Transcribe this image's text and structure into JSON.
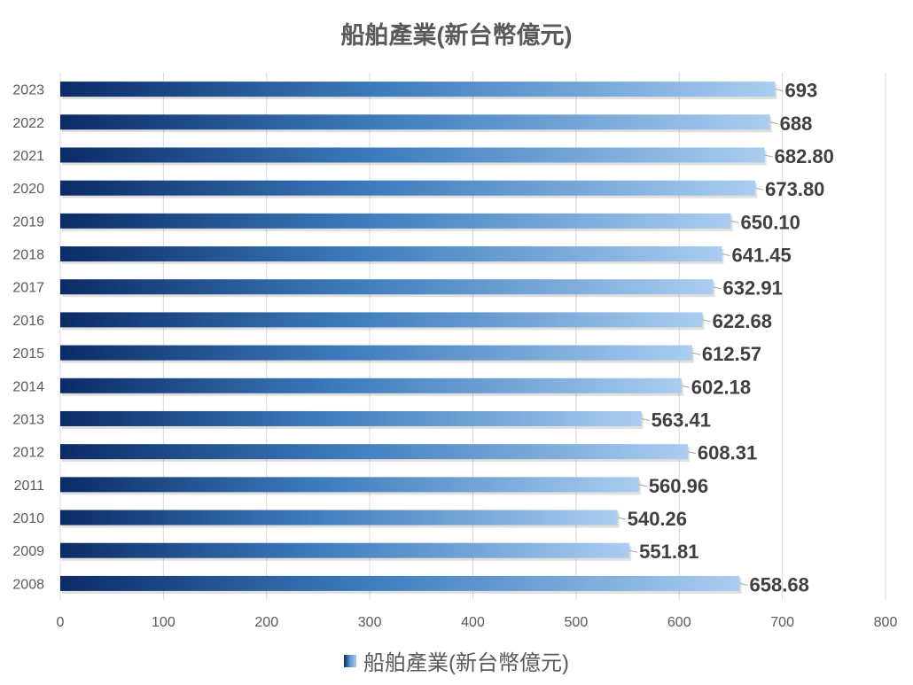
{
  "chart_data": {
    "type": "bar",
    "orientation": "horizontal",
    "title": "船舶產業(新台幣億元)",
    "categories": [
      "2023",
      "2022",
      "2021",
      "2020",
      "2019",
      "2018",
      "2017",
      "2016",
      "2015",
      "2014",
      "2013",
      "2012",
      "2011",
      "2010",
      "2009",
      "2008"
    ],
    "series": [
      {
        "name": "船舶產業(新台幣億元)",
        "values": [
          693,
          688,
          682.8,
          673.8,
          650.1,
          641.45,
          632.91,
          622.68,
          612.57,
          602.18,
          563.41,
          608.31,
          560.96,
          540.26,
          551.81,
          658.68
        ]
      }
    ],
    "data_labels": [
      "693",
      "688",
      "682.80",
      "673.80",
      "650.10",
      "641.45",
      "632.91",
      "622.68",
      "612.57",
      "602.18",
      "563.41",
      "608.31",
      "560.96",
      "540.26",
      "551.81",
      "658.68"
    ],
    "xlim": [
      0,
      800
    ],
    "x_ticks": [
      "0",
      "100",
      "200",
      "300",
      "400",
      "500",
      "600",
      "700",
      "800"
    ],
    "grid": true,
    "legend_position": "bottom",
    "colors": {
      "bar_dark": "#0b2b66",
      "bar_mid": "#3f7fc0",
      "bar_light": "#aacdf0",
      "grid": "#d9d9d9",
      "text": "#595959",
      "label": "#404040"
    }
  }
}
